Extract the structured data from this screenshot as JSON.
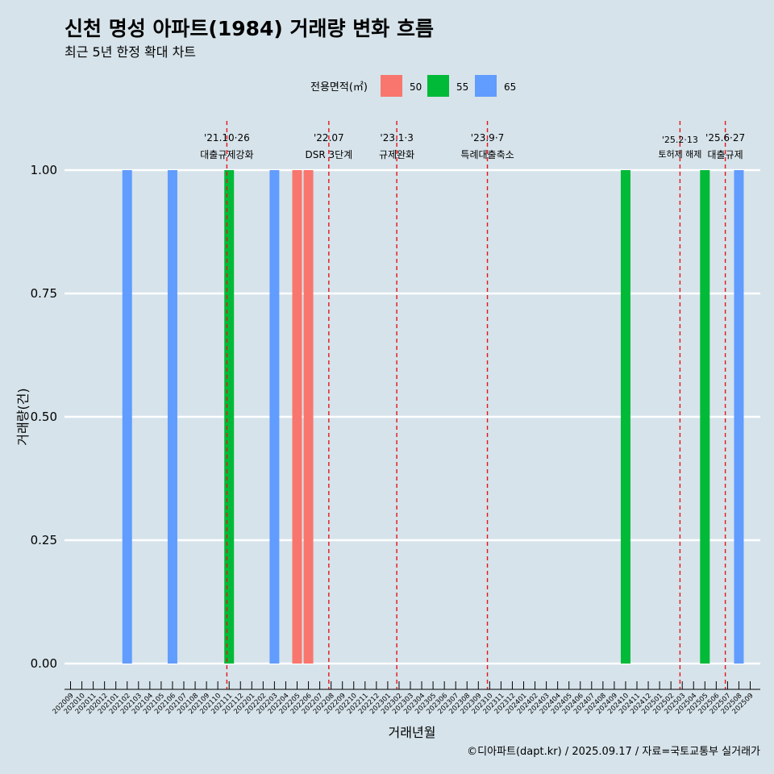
{
  "chart_data": {
    "type": "bar",
    "title": "신천 명성 아파트(1984) 거래량 변화 흐름",
    "subtitle": "최근 5년 한정 확대 차트",
    "xlabel": "거래년월",
    "ylabel": "거래량(건)",
    "ylim": [
      0,
      1
    ],
    "yticks": [
      "0.00",
      "0.25",
      "0.50",
      "0.75",
      "1.00"
    ],
    "ytick_values": [
      0,
      0.25,
      0.5,
      0.75,
      1.0
    ],
    "categories": [
      "202009",
      "202010",
      "202011",
      "202012",
      "202101",
      "202102",
      "202103",
      "202104",
      "202105",
      "202106",
      "202107",
      "202108",
      "202109",
      "202110",
      "202111",
      "202112",
      "202201",
      "202202",
      "202203",
      "202204",
      "202205",
      "202206",
      "202207",
      "202208",
      "202209",
      "202210",
      "202211",
      "202212",
      "202301",
      "202302",
      "202303",
      "202304",
      "202305",
      "202306",
      "202307",
      "202308",
      "202309",
      "202310",
      "202311",
      "202312",
      "202401",
      "202402",
      "202403",
      "202404",
      "202405",
      "202406",
      "202407",
      "202408",
      "202409",
      "202410",
      "202411",
      "202412",
      "202501",
      "202502",
      "202503",
      "202504",
      "202505",
      "202506",
      "202507",
      "202508",
      "202509"
    ],
    "legend": {
      "title": "전용면적(㎡)",
      "position": "top",
      "entries": [
        {
          "label": "50",
          "color": "#f8766d"
        },
        {
          "label": "55",
          "color": "#00ba38"
        },
        {
          "label": "65",
          "color": "#619cff"
        }
      ]
    },
    "bars": [
      {
        "month": "202102",
        "area": "65",
        "value": 1
      },
      {
        "month": "202106",
        "area": "65",
        "value": 1
      },
      {
        "month": "202111",
        "area": "55",
        "value": 1
      },
      {
        "month": "202203",
        "area": "65",
        "value": 1
      },
      {
        "month": "202205",
        "area": "50",
        "value": 1
      },
      {
        "month": "202206",
        "area": "50",
        "value": 1
      },
      {
        "month": "202410",
        "area": "55",
        "value": 1
      },
      {
        "month": "202505",
        "area": "55",
        "value": 1
      },
      {
        "month": "202508",
        "area": "65",
        "value": 1
      }
    ],
    "events": [
      {
        "month_pos": 13.8,
        "date": "'21.10·26",
        "label": "대출규제강화"
      },
      {
        "month_pos": 22.8,
        "date": "'22.07",
        "label": "DSR 3단계"
      },
      {
        "month_pos": 28.8,
        "date": "'23.1·3",
        "label": "규제완화"
      },
      {
        "month_pos": 36.8,
        "date": "'23.9·7",
        "label": "특례대출축소"
      },
      {
        "month_pos": 53.8,
        "date": "'25.2·13",
        "label": "토허제 해제"
      },
      {
        "month_pos": 57.8,
        "date": "'25.6·27",
        "label": "대출규제"
      }
    ],
    "caption": "©디아파트(dapt.kr) / 2025.09.17 / 자료=국토교통부 실거래가"
  }
}
